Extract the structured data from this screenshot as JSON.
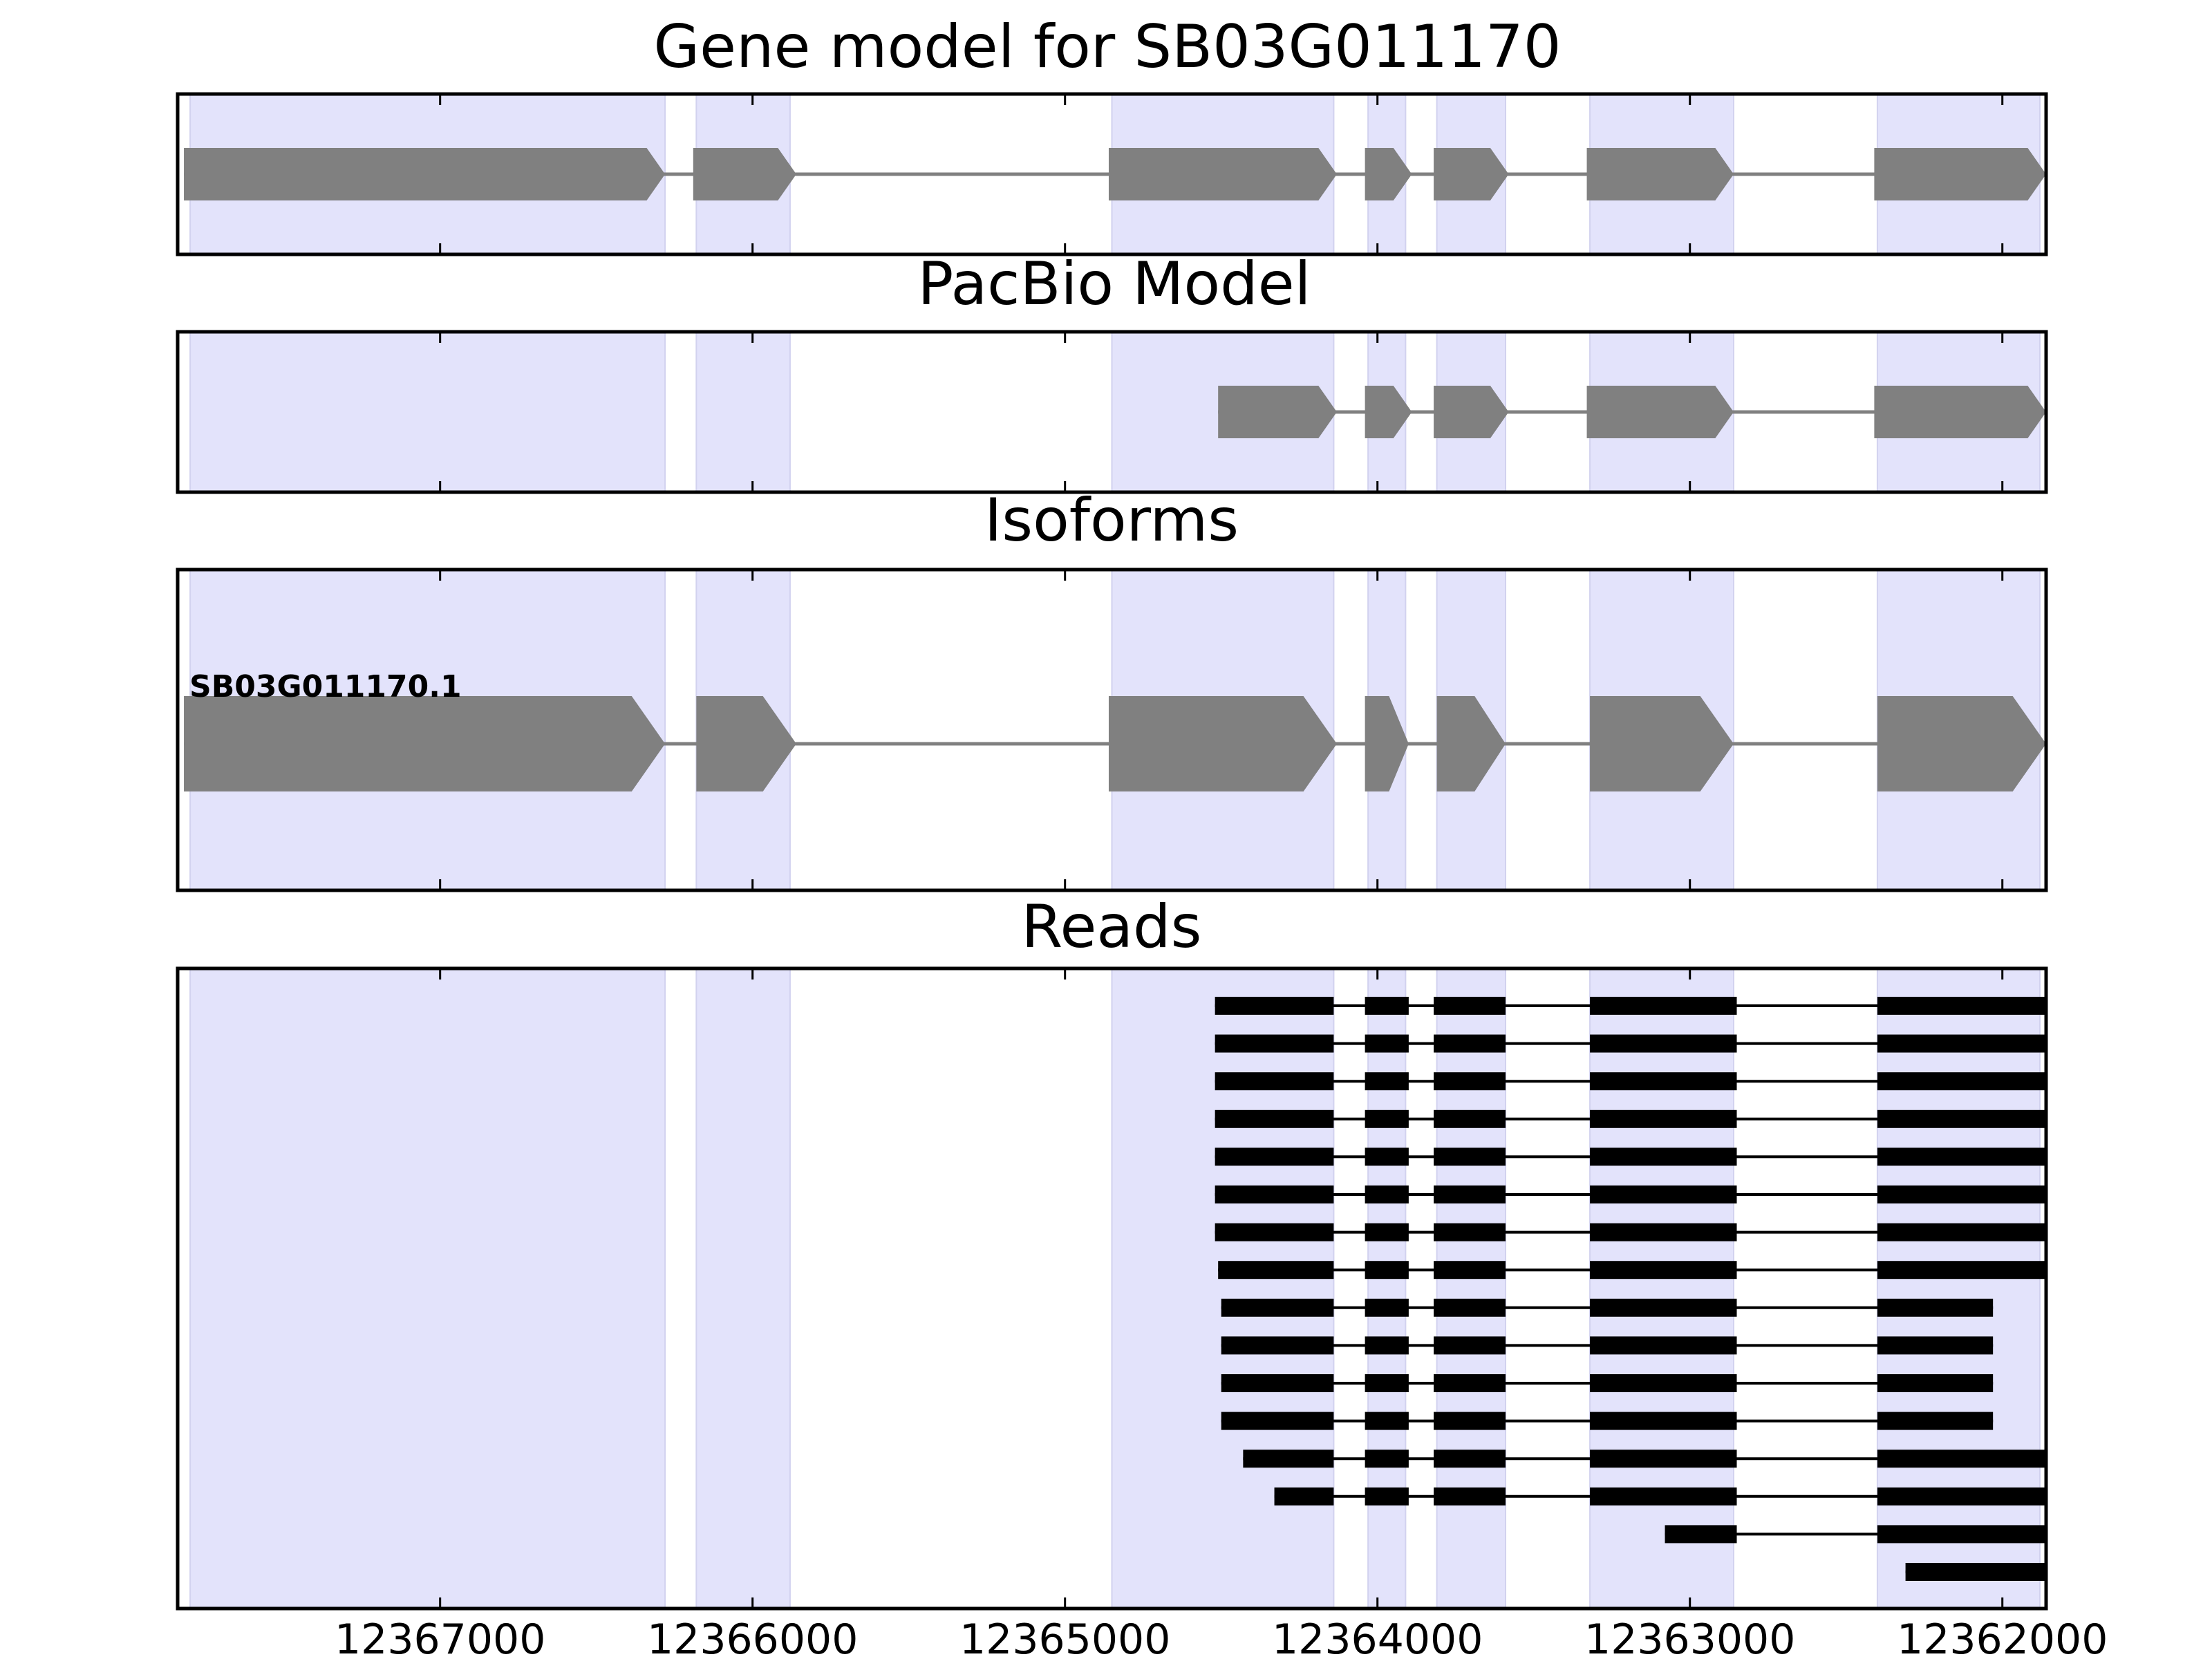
{
  "chart_data": {
    "type": "gene-model",
    "x_axis": {
      "reversed": true,
      "range": [
        12367840,
        12361860
      ],
      "ticks": [
        12367000,
        12366000,
        12365000,
        12364000,
        12363000,
        12362000
      ],
      "tick_labels": [
        "12367000",
        "12366000",
        "12365000",
        "12364000",
        "12363000",
        "12362000"
      ]
    },
    "exon_highlights": [
      [
        12367800,
        12366280
      ],
      [
        12366180,
        12365880
      ],
      [
        12364850,
        12364140
      ],
      [
        12364030,
        12363910
      ],
      [
        12363810,
        12363590
      ],
      [
        12363320,
        12362860
      ],
      [
        12362400,
        12361880
      ]
    ],
    "colors": {
      "gene_feature": "#808080",
      "read_feature": "#000000",
      "highlight": "#e3e3fb",
      "frame": "#000000"
    },
    "panels": [
      {
        "title": "Gene model for SB03G011170",
        "features": [
          {
            "exons": [
              [
                12367820,
                12366280
              ],
              [
                12366190,
                12365860
              ],
              [
                12364860,
                12364130
              ],
              [
                12364040,
                12363890
              ],
              [
                12363820,
                12363580
              ],
              [
                12363330,
                12362860
              ],
              [
                12362410,
                12361860
              ]
            ]
          }
        ]
      },
      {
        "title": "PacBio Model",
        "features": [
          {
            "exons": [
              [
                12364510,
                12364130
              ],
              [
                12364040,
                12363890
              ],
              [
                12363820,
                12363580
              ],
              [
                12363330,
                12362860
              ],
              [
                12362410,
                12361860
              ]
            ]
          }
        ]
      },
      {
        "title": "Isoforms",
        "features": [
          {
            "label": "SB03G011170.1",
            "exons": [
              [
                12367820,
                12366280
              ],
              [
                12366180,
                12365860
              ],
              [
                12364860,
                12364130
              ],
              [
                12364040,
                12363900
              ],
              [
                12363810,
                12363590
              ],
              [
                12363320,
                12362860
              ],
              [
                12362400,
                12361860
              ]
            ]
          }
        ]
      },
      {
        "title": "Reads",
        "reads": [
          [
            [
              12364520,
              12364140
            ],
            [
              12364040,
              12363900
            ],
            [
              12363820,
              12363590
            ],
            [
              12363320,
              12362850
            ],
            [
              12362400,
              12361860
            ]
          ],
          [
            [
              12364520,
              12364140
            ],
            [
              12364040,
              12363900
            ],
            [
              12363820,
              12363590
            ],
            [
              12363320,
              12362850
            ],
            [
              12362400,
              12361860
            ]
          ],
          [
            [
              12364520,
              12364140
            ],
            [
              12364040,
              12363900
            ],
            [
              12363820,
              12363590
            ],
            [
              12363320,
              12362850
            ],
            [
              12362400,
              12361860
            ]
          ],
          [
            [
              12364520,
              12364140
            ],
            [
              12364040,
              12363900
            ],
            [
              12363820,
              12363590
            ],
            [
              12363320,
              12362850
            ],
            [
              12362400,
              12361860
            ]
          ],
          [
            [
              12364520,
              12364140
            ],
            [
              12364040,
              12363900
            ],
            [
              12363820,
              12363590
            ],
            [
              12363320,
              12362850
            ],
            [
              12362400,
              12361860
            ]
          ],
          [
            [
              12364520,
              12364140
            ],
            [
              12364040,
              12363900
            ],
            [
              12363820,
              12363590
            ],
            [
              12363320,
              12362850
            ],
            [
              12362400,
              12361860
            ]
          ],
          [
            [
              12364520,
              12364140
            ],
            [
              12364040,
              12363900
            ],
            [
              12363820,
              12363590
            ],
            [
              12363320,
              12362850
            ],
            [
              12362400,
              12361860
            ]
          ],
          [
            [
              12364510,
              12364140
            ],
            [
              12364040,
              12363900
            ],
            [
              12363820,
              12363590
            ],
            [
              12363320,
              12362850
            ],
            [
              12362400,
              12361860
            ]
          ],
          [
            [
              12364500,
              12364140
            ],
            [
              12364040,
              12363900
            ],
            [
              12363820,
              12363590
            ],
            [
              12363320,
              12362850
            ],
            [
              12362400,
              12362030
            ]
          ],
          [
            [
              12364500,
              12364140
            ],
            [
              12364040,
              12363900
            ],
            [
              12363820,
              12363590
            ],
            [
              12363320,
              12362850
            ],
            [
              12362400,
              12362030
            ]
          ],
          [
            [
              12364500,
              12364140
            ],
            [
              12364040,
              12363900
            ],
            [
              12363820,
              12363590
            ],
            [
              12363320,
              12362850
            ],
            [
              12362400,
              12362030
            ]
          ],
          [
            [
              12364500,
              12364140
            ],
            [
              12364040,
              12363900
            ],
            [
              12363820,
              12363590
            ],
            [
              12363320,
              12362850
            ],
            [
              12362400,
              12362030
            ]
          ],
          [
            [
              12364430,
              12364140
            ],
            [
              12364040,
              12363900
            ],
            [
              12363820,
              12363590
            ],
            [
              12363320,
              12362850
            ],
            [
              12362400,
              12361860
            ]
          ],
          [
            [
              12364330,
              12364140
            ],
            [
              12364040,
              12363900
            ],
            [
              12363820,
              12363590
            ],
            [
              12363320,
              12362850
            ],
            [
              12362400,
              12361860
            ]
          ],
          [
            [
              12363080,
              12362850
            ],
            [
              12362400,
              12361860
            ]
          ],
          [
            [
              12362310,
              12361860
            ]
          ]
        ]
      }
    ]
  }
}
